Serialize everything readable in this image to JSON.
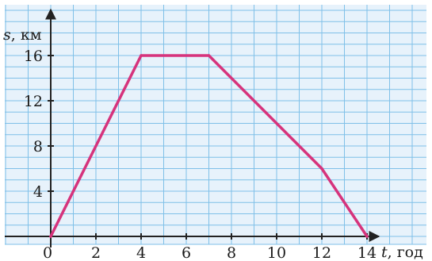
{
  "chart_data": {
    "type": "line",
    "xlabel": {
      "var": "t",
      "unit": ", год"
    },
    "ylabel": {
      "var": "s",
      "unit": ", км"
    },
    "xlim": [
      0,
      15
    ],
    "ylim": [
      0,
      18
    ],
    "x_ticks": [
      0,
      2,
      4,
      6,
      8,
      10,
      12,
      14
    ],
    "y_ticks": [
      4,
      8,
      12,
      16
    ],
    "x_tick_labels": [
      "0",
      "2",
      "4",
      "6",
      "8",
      "10",
      "12",
      "14"
    ],
    "y_tick_labels": [
      "4",
      "8",
      "12",
      "16"
    ],
    "grid": true,
    "grid_step": 1,
    "colors": {
      "background": "#e7f2fb",
      "grid": "#7fc0e8",
      "axis": "#222222",
      "series": "#d6337c"
    },
    "series": [
      {
        "points": [
          [
            0,
            0
          ],
          [
            4,
            16
          ],
          [
            7,
            16
          ],
          [
            12,
            6
          ],
          [
            14,
            0
          ]
        ]
      }
    ]
  }
}
